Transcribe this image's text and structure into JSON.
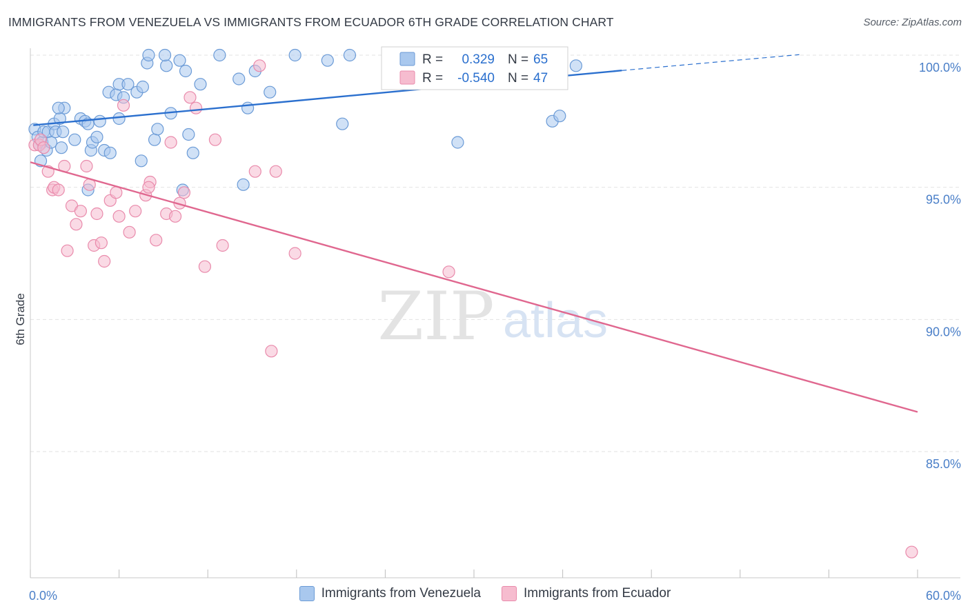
{
  "header": {
    "title": "IMMIGRANTS FROM VENEZUELA VS IMMIGRANTS FROM ECUADOR 6TH GRADE CORRELATION CHART",
    "source": "Source: ZipAtlas.com"
  },
  "watermark": {
    "zip": "ZIP",
    "atlas": "atlas"
  },
  "colors": {
    "venezuela_fill": "#a9c8ee",
    "venezuela_stroke": "#6a9ad6",
    "venezuela_line": "#2a6fce",
    "ecuador_fill": "#f6bccf",
    "ecuador_stroke": "#e98aab",
    "ecuador_line": "#e0678f",
    "tick_label": "#4a7fc8",
    "grid": "#e2e2e2"
  },
  "chart_data": {
    "type": "scatter",
    "ylabel": "6th Grade",
    "xlim": [
      0,
      60
    ],
    "ylim": [
      80.5,
      100.8
    ],
    "x_tick_labels": [
      {
        "value": 0,
        "label": "0.0%"
      },
      {
        "value": 60,
        "label": "60.0%"
      }
    ],
    "y_ticks": [
      {
        "value": 100,
        "label": "100.0%"
      },
      {
        "value": 95,
        "label": "95.0%"
      },
      {
        "value": 90,
        "label": "90.0%"
      },
      {
        "value": 85,
        "label": "85.0%"
      }
    ],
    "grid": true,
    "legend_stats": [
      {
        "r_label": "R =",
        "r_value": "0.329",
        "n_label": "N =",
        "n_value": "65"
      },
      {
        "r_label": "R =",
        "r_value": "-0.540",
        "n_label": "N =",
        "n_value": "47"
      }
    ],
    "series": [
      {
        "name": "Immigrants from Venezuela",
        "trend": {
          "x0": 0.2,
          "y0": 97.35,
          "x1": 40.0,
          "y1": 99.42,
          "dash_to_x": 52.0,
          "dash_to_y": 100.02
        },
        "points": [
          [
            0.3,
            97.2
          ],
          [
            0.5,
            96.9
          ],
          [
            0.6,
            96.6
          ],
          [
            0.8,
            96.7
          ],
          [
            0.9,
            97.1
          ],
          [
            0.7,
            96.0
          ],
          [
            1.1,
            96.4
          ],
          [
            1.2,
            97.1
          ],
          [
            1.4,
            96.7
          ],
          [
            1.6,
            97.4
          ],
          [
            1.7,
            97.1
          ],
          [
            2.2,
            97.1
          ],
          [
            2.1,
            96.5
          ],
          [
            2.0,
            97.6
          ],
          [
            2.3,
            98.0
          ],
          [
            1.9,
            98.0
          ],
          [
            3.0,
            96.8
          ],
          [
            3.4,
            97.6
          ],
          [
            3.7,
            97.5
          ],
          [
            4.1,
            96.4
          ],
          [
            4.2,
            96.7
          ],
          [
            4.5,
            96.9
          ],
          [
            4.7,
            97.5
          ],
          [
            5.0,
            96.4
          ],
          [
            5.4,
            96.3
          ],
          [
            3.9,
            97.4
          ],
          [
            3.9,
            94.9
          ],
          [
            5.3,
            98.6
          ],
          [
            5.8,
            98.5
          ],
          [
            6.0,
            98.9
          ],
          [
            6.3,
            98.4
          ],
          [
            6.6,
            98.9
          ],
          [
            6.0,
            97.6
          ],
          [
            7.2,
            98.6
          ],
          [
            7.6,
            98.8
          ],
          [
            7.5,
            96.0
          ],
          [
            7.9,
            99.7
          ],
          [
            8.0,
            100.0
          ],
          [
            8.4,
            96.8
          ],
          [
            8.6,
            97.2
          ],
          [
            9.2,
            99.6
          ],
          [
            9.1,
            100.0
          ],
          [
            9.5,
            97.8
          ],
          [
            10.1,
            99.8
          ],
          [
            10.5,
            99.4
          ],
          [
            10.3,
            94.9
          ],
          [
            10.7,
            97.0
          ],
          [
            11.0,
            96.3
          ],
          [
            11.5,
            98.9
          ],
          [
            12.8,
            100.0
          ],
          [
            14.1,
            99.1
          ],
          [
            14.7,
            98.0
          ],
          [
            15.2,
            99.4
          ],
          [
            14.4,
            95.1
          ],
          [
            16.2,
            98.6
          ],
          [
            17.9,
            100.0
          ],
          [
            20.1,
            99.8
          ],
          [
            21.1,
            97.4
          ],
          [
            21.6,
            100.0
          ],
          [
            26.4,
            99.7
          ],
          [
            28.0,
            100.0
          ],
          [
            28.9,
            96.7
          ],
          [
            35.3,
            97.5
          ],
          [
            35.8,
            97.7
          ],
          [
            36.9,
            99.6
          ]
        ]
      },
      {
        "name": "Immigrants from Ecuador",
        "trend": {
          "x0": 0.0,
          "y0": 95.95,
          "x1": 60.0,
          "y1": 86.5
        },
        "points": [
          [
            0.3,
            96.6
          ],
          [
            0.6,
            96.6
          ],
          [
            0.7,
            96.8
          ],
          [
            0.9,
            96.5
          ],
          [
            1.2,
            95.6
          ],
          [
            1.5,
            94.9
          ],
          [
            1.6,
            95.0
          ],
          [
            1.9,
            94.9
          ],
          [
            2.3,
            95.8
          ],
          [
            2.5,
            92.6
          ],
          [
            2.8,
            94.3
          ],
          [
            3.1,
            93.6
          ],
          [
            3.4,
            94.1
          ],
          [
            3.8,
            95.8
          ],
          [
            4.0,
            95.1
          ],
          [
            4.3,
            92.8
          ],
          [
            4.5,
            94.0
          ],
          [
            4.8,
            92.9
          ],
          [
            5.0,
            92.2
          ],
          [
            5.4,
            94.5
          ],
          [
            5.8,
            94.8
          ],
          [
            6.0,
            93.9
          ],
          [
            6.3,
            98.1
          ],
          [
            6.7,
            93.3
          ],
          [
            7.1,
            94.1
          ],
          [
            7.8,
            94.7
          ],
          [
            8.1,
            95.2
          ],
          [
            8.0,
            95.0
          ],
          [
            8.5,
            93.0
          ],
          [
            9.2,
            94.0
          ],
          [
            9.5,
            96.7
          ],
          [
            9.8,
            93.9
          ],
          [
            10.1,
            94.4
          ],
          [
            10.4,
            94.8
          ],
          [
            10.8,
            98.4
          ],
          [
            11.2,
            98.0
          ],
          [
            11.8,
            92.0
          ],
          [
            12.5,
            96.8
          ],
          [
            13.0,
            92.8
          ],
          [
            15.2,
            95.6
          ],
          [
            15.5,
            99.6
          ],
          [
            16.3,
            88.8
          ],
          [
            16.6,
            95.6
          ],
          [
            17.9,
            92.5
          ],
          [
            28.3,
            91.8
          ],
          [
            29.0,
            99.6
          ],
          [
            59.6,
            81.2
          ]
        ]
      }
    ]
  }
}
